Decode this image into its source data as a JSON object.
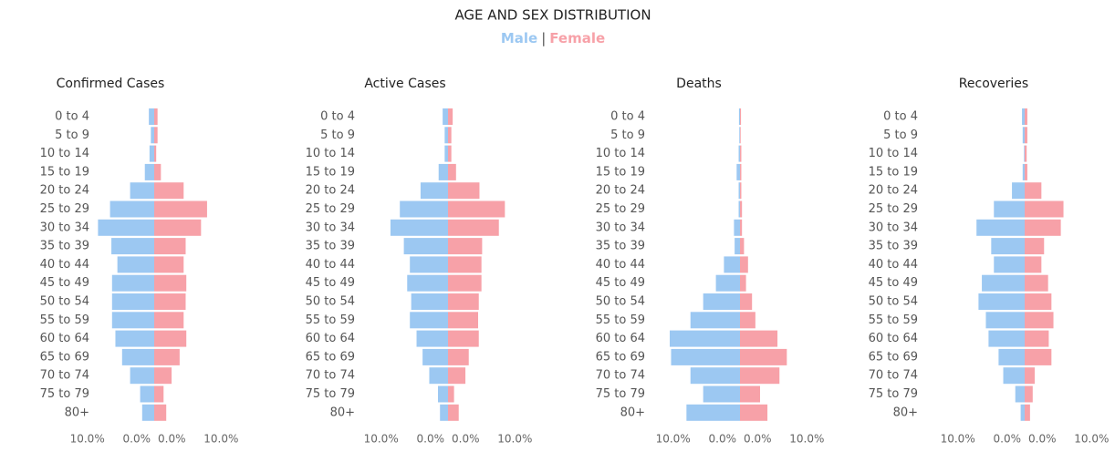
{
  "title": "AGE AND SEX DISTRIBUTION",
  "legend": {
    "separator": "|"
  },
  "chart_data": [
    {
      "type": "pyramid",
      "title": "Confirmed Cases",
      "categories": [
        "0 to 4",
        "5 to 9",
        "10 to 14",
        "15 to 19",
        "20 to 24",
        "25 to 29",
        "30 to 34",
        "35 to 39",
        "40 to 44",
        "45 to 49",
        "50 to 54",
        "55 to 59",
        "60 to 64",
        "65 to 69",
        "70 to 74",
        "75 to 79",
        "80+"
      ],
      "xlim": [
        0,
        12
      ],
      "series": [
        {
          "name": "Male",
          "color": "#9cc8f2",
          "values": [
            0.8,
            0.5,
            0.7,
            1.4,
            3.6,
            6.6,
            8.4,
            6.4,
            5.5,
            6.3,
            6.3,
            6.3,
            5.8,
            4.8,
            3.6,
            2.1,
            1.8
          ],
          "xticks": [
            {
              "value": 10,
              "label": "10.0%"
            },
            {
              "value": 0,
              "label": "0.0%"
            }
          ]
        },
        {
          "name": "Female",
          "color": "#f7a1a8",
          "values": [
            0.5,
            0.5,
            0.3,
            1.0,
            4.4,
            7.9,
            7.0,
            4.7,
            4.4,
            4.8,
            4.7,
            4.4,
            4.8,
            3.8,
            2.6,
            1.4,
            1.8
          ],
          "xticks": [
            {
              "value": 0,
              "label": "0.0%"
            },
            {
              "value": 10,
              "label": "10.0%"
            }
          ]
        }
      ]
    },
    {
      "type": "pyramid",
      "title": "Active Cases",
      "categories": [
        "0 to 4",
        "5 to 9",
        "10 to 14",
        "15 to 19",
        "20 to 24",
        "25 to 29",
        "30 to 34",
        "35 to 39",
        "40 to 44",
        "45 to 49",
        "50 to 54",
        "55 to 59",
        "60 to 64",
        "65 to 69",
        "70 to 74",
        "75 to 79",
        "80+"
      ],
      "xlim": [
        0,
        12
      ],
      "series": [
        {
          "name": "Male",
          "color": "#9cc8f2",
          "values": [
            0.8,
            0.5,
            0.5,
            1.4,
            4.1,
            7.2,
            8.6,
            6.6,
            5.7,
            6.1,
            5.5,
            5.7,
            4.7,
            3.8,
            2.8,
            1.5,
            1.2
          ],
          "xticks": [
            {
              "value": 10,
              "label": "10.0%"
            },
            {
              "value": 0,
              "label": "0.0%"
            }
          ]
        },
        {
          "name": "Female",
          "color": "#f7a1a8",
          "values": [
            0.7,
            0.5,
            0.5,
            1.2,
            4.7,
            8.5,
            7.6,
            5.1,
            5.0,
            5.0,
            4.6,
            4.5,
            4.6,
            3.1,
            2.6,
            0.9,
            1.6
          ],
          "xticks": [
            {
              "value": 0,
              "label": "0.0%"
            },
            {
              "value": 10,
              "label": "10.0%"
            }
          ]
        }
      ]
    },
    {
      "type": "pyramid",
      "title": "Deaths",
      "categories": [
        "0 to 4",
        "5 to 9",
        "10 to 14",
        "15 to 19",
        "20 to 24",
        "25 to 29",
        "30 to 34",
        "35 to 39",
        "40 to 44",
        "45 to 49",
        "50 to 54",
        "55 to 59",
        "60 to 64",
        "65 to 69",
        "70 to 74",
        "75 to 79",
        "80+"
      ],
      "xlim": [
        0,
        12
      ],
      "series": [
        {
          "name": "Male",
          "color": "#9cc8f2",
          "values": [
            0.15,
            0.1,
            0.2,
            0.5,
            0.2,
            0.2,
            0.9,
            0.8,
            2.4,
            3.6,
            5.5,
            7.4,
            10.5,
            10.3,
            7.4,
            5.5,
            8.0
          ],
          "xticks": [
            {
              "value": 10,
              "label": "10.0%"
            },
            {
              "value": 0,
              "label": "0.0%"
            }
          ]
        },
        {
          "name": "Female",
          "color": "#f7a1a8",
          "values": [
            0.15,
            0.1,
            0.2,
            0.2,
            0.2,
            0.3,
            0.3,
            0.6,
            1.2,
            0.9,
            1.8,
            2.3,
            5.6,
            7.0,
            5.9,
            3.0,
            4.1
          ],
          "xticks": [
            {
              "value": 0,
              "label": "0.0%"
            },
            {
              "value": 10,
              "label": "10.0%"
            }
          ]
        }
      ]
    },
    {
      "type": "pyramid",
      "title": "Recoveries",
      "categories": [
        "0 to 4",
        "5 to 9",
        "10 to 14",
        "15 to 19",
        "20 to 24",
        "25 to 29",
        "30 to 34",
        "35 to 39",
        "40 to 44",
        "45 to 49",
        "50 to 54",
        "55 to 59",
        "60 to 64",
        "65 to 69",
        "70 to 74",
        "75 to 79",
        "80+"
      ],
      "xlim": [
        0,
        12
      ],
      "series": [
        {
          "name": "Male",
          "color": "#9cc8f2",
          "values": [
            0.4,
            0.3,
            0.1,
            0.3,
            1.9,
            4.6,
            7.2,
            5.0,
            4.6,
            6.4,
            6.9,
            5.8,
            5.4,
            3.9,
            3.2,
            1.4,
            0.6
          ],
          "xticks": [
            {
              "value": 10,
              "label": "10.0%"
            },
            {
              "value": 0,
              "label": "0.0%"
            }
          ]
        },
        {
          "name": "Female",
          "color": "#f7a1a8",
          "values": [
            0.4,
            0.4,
            0.3,
            0.4,
            2.5,
            5.8,
            5.4,
            2.9,
            2.5,
            3.5,
            4.0,
            4.3,
            3.6,
            4.0,
            1.5,
            1.2,
            0.8
          ],
          "xticks": [
            {
              "value": 0,
              "label": "0.0%"
            },
            {
              "value": 10,
              "label": "10.0%"
            }
          ]
        }
      ]
    }
  ]
}
